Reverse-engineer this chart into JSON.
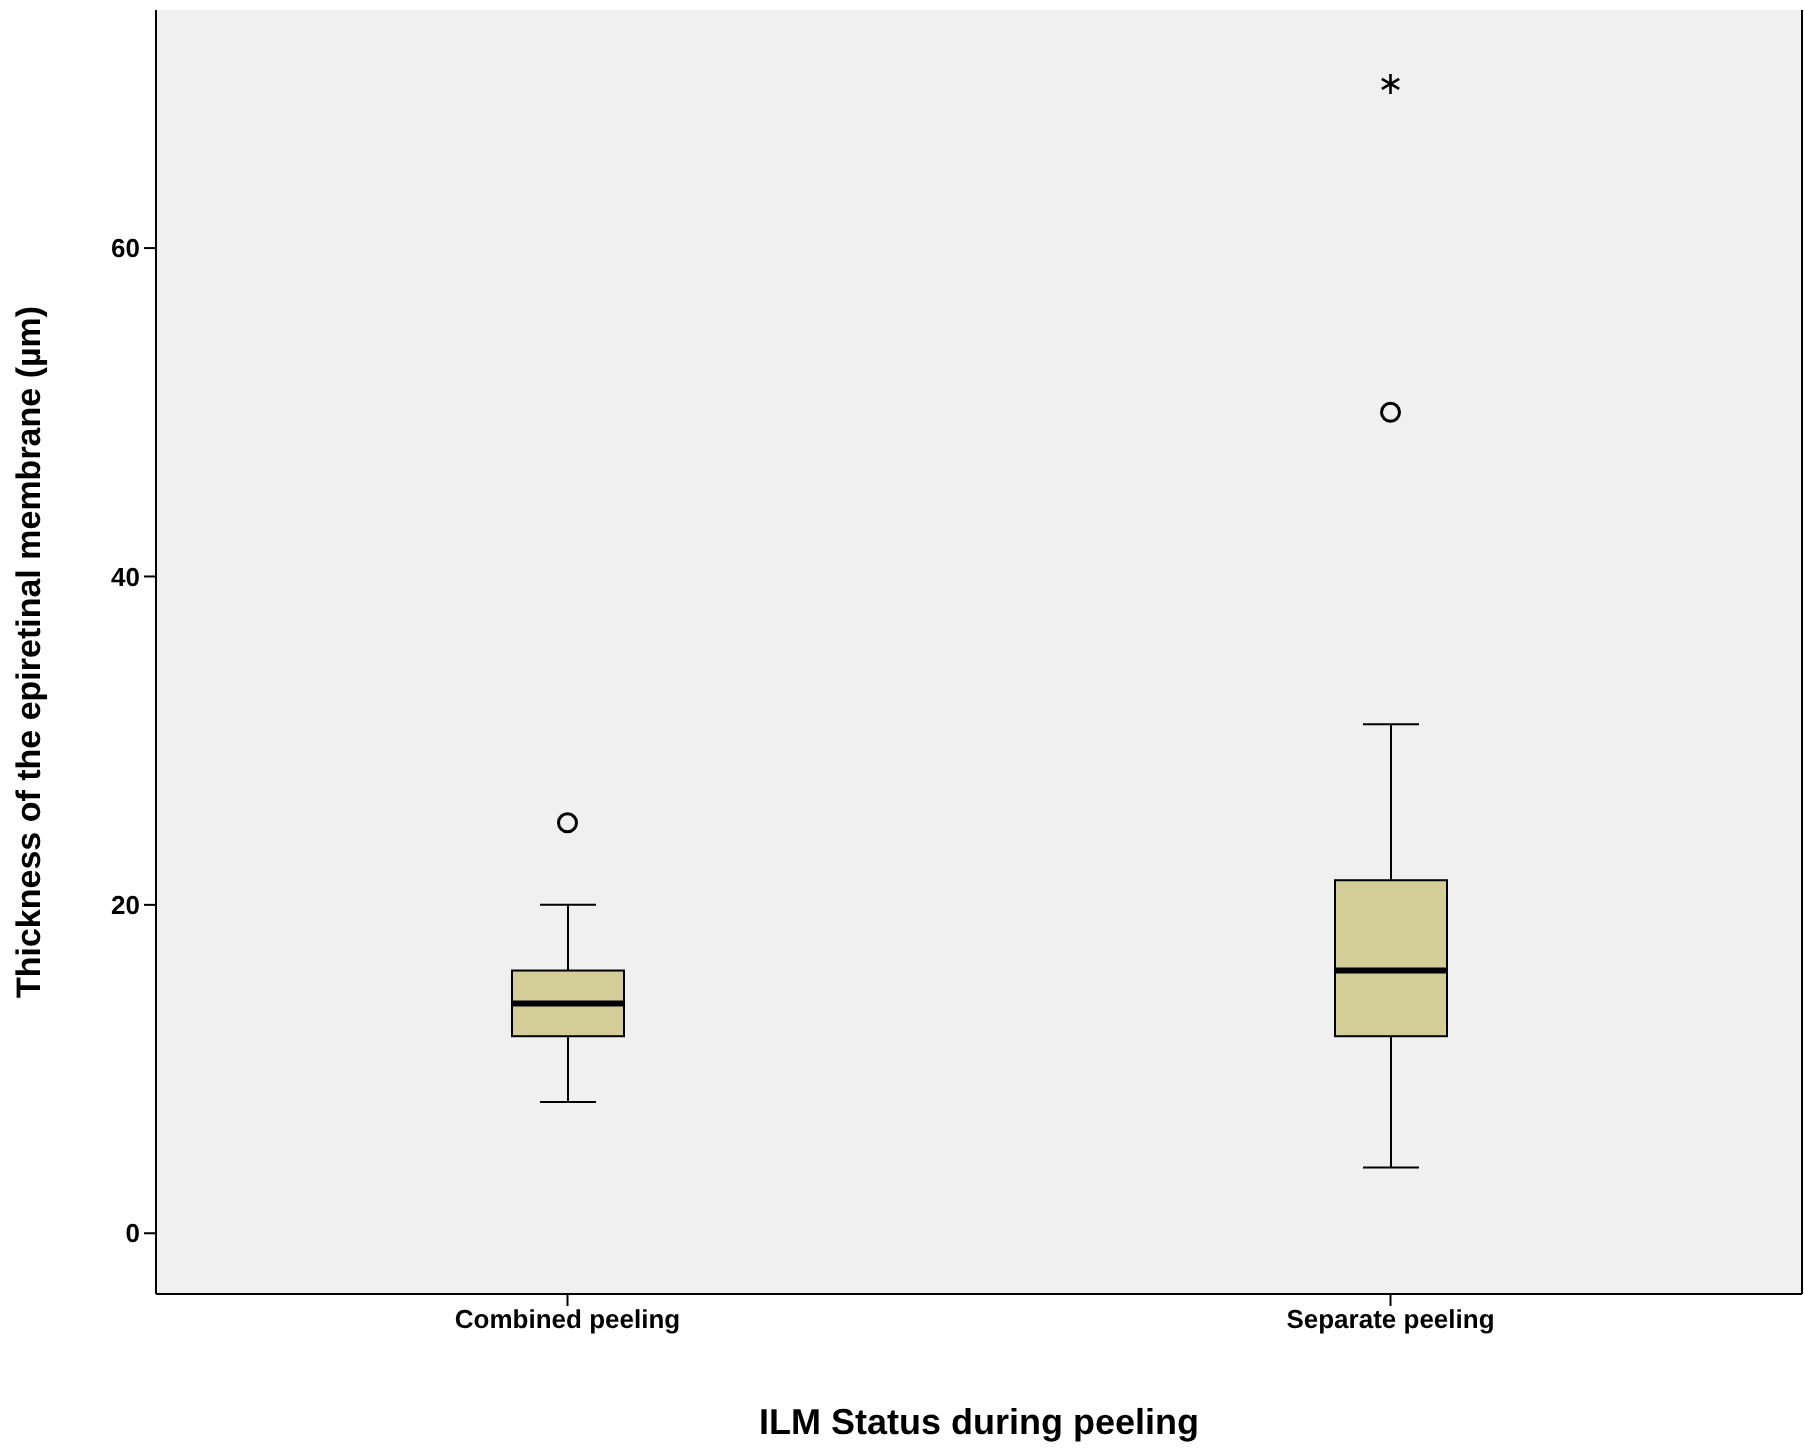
{
  "chart_data": {
    "type": "box",
    "xlabel": "ILM Status during peeling",
    "ylabel": "Thickness of the epiretinal membrane (µm)",
    "categories": [
      "Combined peeling",
      "Separate peeling"
    ],
    "boxes": [
      {
        "low": 8,
        "q1": 12,
        "median": 14,
        "q3": 16,
        "high": 20,
        "outliers": [
          25
        ]
      },
      {
        "low": 4,
        "q1": 12,
        "median": 16,
        "q3": 21.5,
        "high": 31,
        "outliers": [
          50,
          70
        ]
      }
    ],
    "color": "#d3ce97",
    "ylim": [
      -3.7,
      74.5
    ],
    "yticks": [
      0,
      20,
      40,
      60
    ],
    "grid": false,
    "legend": false
  }
}
